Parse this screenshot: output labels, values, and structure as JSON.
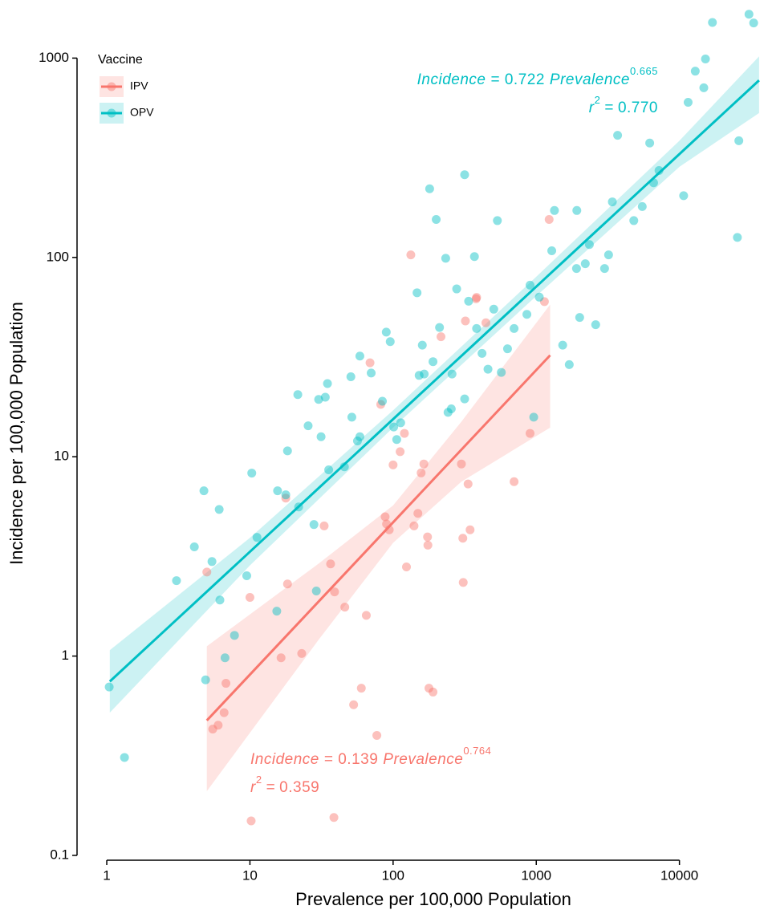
{
  "chart_data": {
    "type": "scatter",
    "x_label": "Prevalence per 100,000 Population",
    "y_label": "Incidence per 100,000 Population",
    "xlim": [
      0.62,
      37000
    ],
    "ylim": [
      0.1,
      1800
    ],
    "xticks": [
      1,
      10,
      100,
      1000,
      10000
    ],
    "yticks": [
      0.1,
      1,
      10,
      100,
      1000
    ],
    "xscale": "log",
    "yscale": "log",
    "grid": false,
    "legend": {
      "title": "Vaccine",
      "position": "top-left"
    },
    "equation_text": {
      "lhs": "Incidence =",
      "var": "Prevalence",
      "r": "r",
      "sup": "2",
      "eq": "="
    },
    "series": [
      {
        "name": "IPV",
        "color": "#F8766D",
        "x": [
          5.0,
          5.5,
          6.0,
          6.6,
          6.8,
          10,
          10.2,
          16.5,
          17.8,
          18.3,
          23,
          33,
          36.6,
          39,
          38.6,
          46,
          53,
          60,
          65,
          69,
          77,
          82,
          88,
          90,
          94,
          100,
          112,
          120,
          124,
          133,
          140,
          149,
          157,
          164,
          174,
          175,
          178,
          190,
          216,
          300,
          307,
          309,
          320,
          334,
          345,
          383,
          380,
          445,
          1230,
          1140,
          905,
          700
        ],
        "values": [
          2.64,
          0.43,
          0.45,
          0.52,
          0.73,
          1.97,
          0.149,
          0.98,
          6.2,
          2.3,
          1.03,
          4.5,
          2.9,
          2.1,
          0.155,
          1.76,
          0.57,
          0.69,
          1.6,
          29.6,
          0.4,
          18.3,
          5,
          4.6,
          4.3,
          9.1,
          10.6,
          13.1,
          2.8,
          103,
          4.5,
          5.2,
          8.3,
          9.2,
          3.96,
          3.6,
          0.69,
          0.66,
          40,
          9.2,
          3.9,
          2.34,
          48,
          7.3,
          4.3,
          63,
          62,
          47,
          155,
          60,
          13.1,
          7.5
        ]
      },
      {
        "name": "OPV",
        "color": "#00BFC4",
        "x": [
          1.04,
          1.33,
          3.07,
          4.09,
          4.77,
          5.43,
          6.1,
          6.17,
          4.9,
          9.5,
          10.3,
          11.2,
          6.7,
          7.8,
          15.4,
          15.6,
          17.8,
          18.3,
          21.6,
          21.9,
          25.5,
          28,
          30.2,
          31.4,
          33.6,
          34.8,
          35.5,
          29.1,
          45.7,
          50.7,
          58.6,
          58.6,
          56.4,
          51.5,
          70.3,
          84.2,
          89.6,
          95.5,
          101,
          106,
          113,
          152,
          147,
          160,
          165,
          180,
          190,
          200,
          211,
          233,
          242,
          255,
          258,
          278,
          316,
          337,
          316,
          370,
          383,
          418,
          460,
          505,
          535,
          570,
          630,
          700,
          860,
          905,
          960,
          1050,
          1283,
          1340,
          1530,
          1700,
          1910,
          1920,
          2010,
          2200,
          2350,
          2600,
          3000,
          3200,
          3400,
          3700,
          4800,
          5500,
          6200,
          6600,
          7200,
          10700,
          11500,
          12900,
          15200,
          14800,
          17000,
          25400,
          26000,
          30600,
          33000
        ],
        "values": [
          0.7,
          0.31,
          2.39,
          3.53,
          6.75,
          2.98,
          5.44,
          1.91,
          0.76,
          2.53,
          8.28,
          3.94,
          0.98,
          1.27,
          1.68,
          6.75,
          6.44,
          10.7,
          20.5,
          5.6,
          14.3,
          4.57,
          19.4,
          12.6,
          19.9,
          23.3,
          8.6,
          2.12,
          8.9,
          25.2,
          32.0,
          12.6,
          12.0,
          15.8,
          26.3,
          19.0,
          42.2,
          37.8,
          14.1,
          12.2,
          14.8,
          25.6,
          66.5,
          36.3,
          26.0,
          221,
          30.0,
          155,
          44.5,
          99,
          16.7,
          17.4,
          26.0,
          69.5,
          260,
          60.3,
          19.5,
          101,
          44,
          33,
          27.5,
          55,
          153,
          26.5,
          34.8,
          44,
          51.8,
          72.6,
          15.8,
          63.2,
          108,
          172,
          36.3,
          29,
          88,
          172,
          50,
          93,
          116,
          46,
          88,
          103,
          190,
          410,
          153,
          180,
          375,
          237,
          273,
          204,
          600,
          860,
          990,
          710,
          1510,
          126,
          385,
          1660,
          1500
        ]
      }
    ],
    "fits": [
      {
        "name": "IPV",
        "color": "#F8766D",
        "coef": 0.139,
        "exponent": 0.764,
        "r2": {
          "value": 0.359,
          "label": "0.359"
        },
        "x_range": [
          5,
          1250
        ],
        "band": {
          "x": [
            5,
            30,
            100,
            300,
            1250
          ],
          "lower": [
            0.21,
            1.2,
            3.7,
            7.5,
            14
          ],
          "upper": [
            1.12,
            2.9,
            5.7,
            15,
            58
          ]
        }
      },
      {
        "name": "OPV",
        "color": "#00BFC4",
        "coef": 0.722,
        "exponent": 0.665,
        "r2": {
          "value": 0.77,
          "label": "0.770"
        },
        "x_range": [
          1.05,
          36000
        ],
        "band": {
          "x": [
            1.05,
            10,
            100,
            1000,
            10000,
            36000
          ],
          "lower": [
            0.52,
            2.85,
            14.0,
            64,
            285,
            530
          ],
          "upper": [
            1.07,
            3.92,
            17.1,
            80,
            385,
            1020
          ]
        }
      }
    ]
  }
}
